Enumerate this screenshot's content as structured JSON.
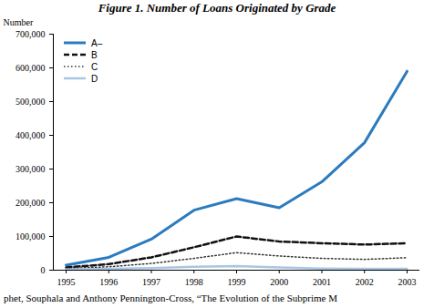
{
  "chart_data": {
    "type": "line",
    "title": "Figure 1. Number of Loans Originated by Grade",
    "y_label": "Number",
    "caption": "phet, Souphala and Anthony Pennington-Cross, “The Evolution of the Subprime M",
    "x": [
      1995,
      1996,
      1997,
      1998,
      1999,
      2000,
      2001,
      2002,
      2003
    ],
    "series": [
      {
        "name": "A–",
        "color": "#2b7bbf",
        "line_style": "solid",
        "values": [
          15000,
          38000,
          92000,
          178000,
          212000,
          185000,
          262000,
          378000,
          590000
        ]
      },
      {
        "name": "B",
        "color": "#111111",
        "line_style": "dashed",
        "values": [
          8000,
          18000,
          38000,
          68000,
          100000,
          85000,
          80000,
          76000,
          80000
        ]
      },
      {
        "name": "C",
        "color": "#333333",
        "line_style": "dotted",
        "values": [
          5000,
          10000,
          20000,
          35000,
          52000,
          42000,
          35000,
          32000,
          37000
        ]
      },
      {
        "name": "D",
        "color": "#a9c6e3",
        "line_style": "solid",
        "values": [
          2000,
          4000,
          6000,
          10000,
          12000,
          8000,
          5000,
          4000,
          4000
        ]
      }
    ],
    "xlim": [
      1994.7,
      2003.3
    ],
    "xticks": [
      1995,
      1996,
      1997,
      1998,
      1999,
      2000,
      2001,
      2002,
      2003
    ],
    "ylim": [
      0,
      700000
    ],
    "yticks": [
      0,
      {
        "value": 100000,
        "label": "100,000"
      },
      {
        "value": 200000,
        "label": "200,000"
      },
      {
        "value": 300000,
        "label": "300,000"
      },
      {
        "value": 400000,
        "label": "400,000"
      },
      {
        "value": 500000,
        "label": "500,000"
      },
      {
        "value": 600000,
        "label": "600,000"
      },
      {
        "value": 700000,
        "label": "700,000"
      }
    ],
    "legend": "top-left",
    "grid": false
  }
}
